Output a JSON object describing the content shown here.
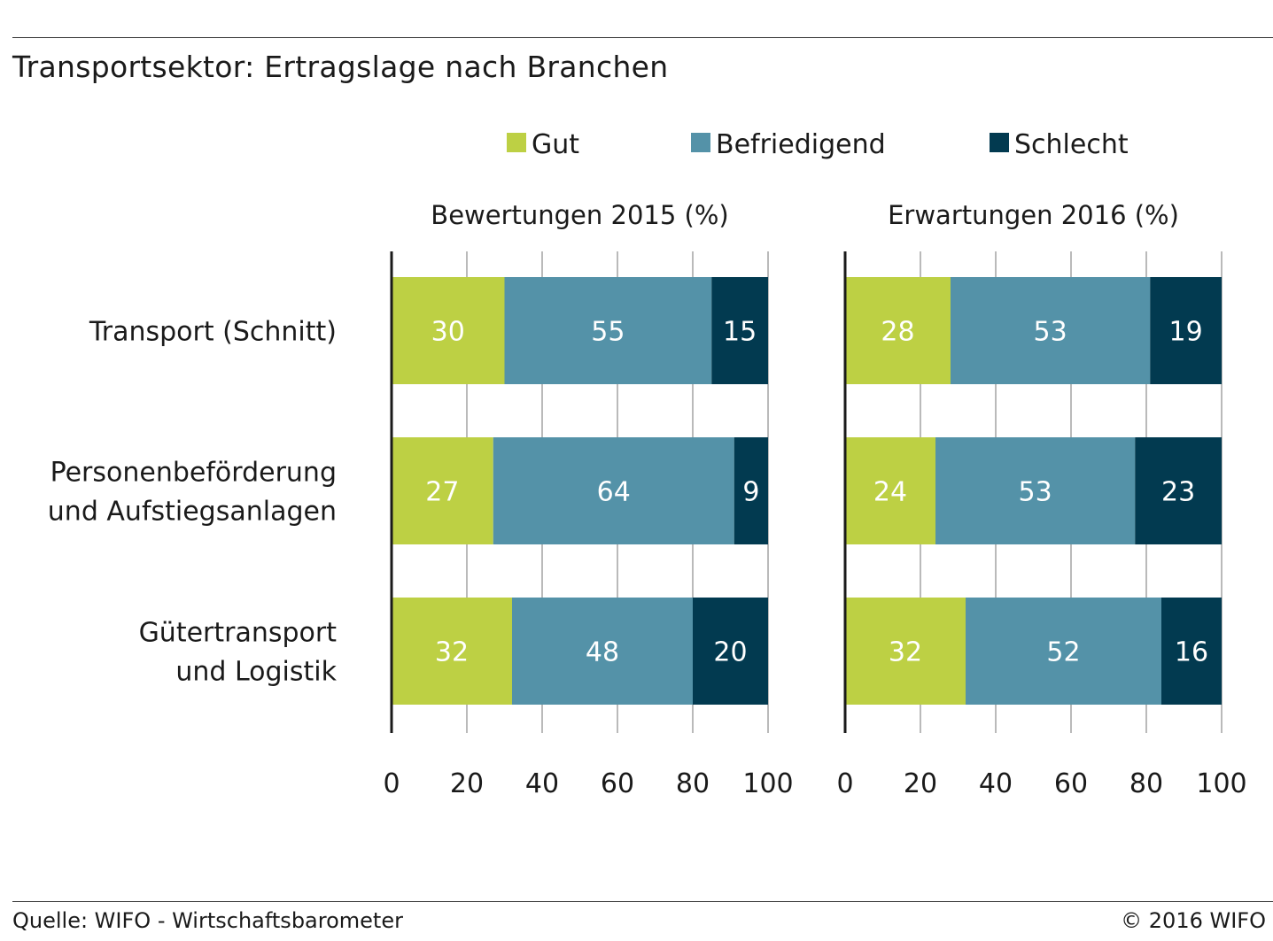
{
  "title": "Transportsektor: Ertragslage nach Branchen",
  "footer": {
    "source": "Quelle: WIFO - Wirtschaftsbarometer",
    "copyright": "© 2016 WIFO"
  },
  "colors": {
    "gut": "#bdd044",
    "befriedigend": "#5492a8",
    "schlecht": "#023a50"
  },
  "chart_data": [
    {
      "type": "bar",
      "orientation": "horizontal",
      "stacked": true,
      "title": "Bewertungen 2015 (%)",
      "categories": [
        [
          "Transport (Schnitt)"
        ],
        [
          "Personenbeförderung",
          "und Aufstiegsanlagen"
        ],
        [
          "Gütertransport",
          "und Logistik"
        ]
      ],
      "series": [
        {
          "name": "Gut",
          "values": [
            30,
            27,
            32
          ]
        },
        {
          "name": "Befriedigend",
          "values": [
            55,
            64,
            48
          ]
        },
        {
          "name": "Schlecht",
          "values": [
            15,
            9,
            20
          ]
        }
      ],
      "xlim": [
        0,
        100
      ],
      "xticks": [
        0,
        20,
        40,
        60,
        80,
        100
      ],
      "grid": true,
      "legend": "top"
    },
    {
      "type": "bar",
      "orientation": "horizontal",
      "stacked": true,
      "title": "Erwartungen 2016 (%)",
      "categories": [
        [
          "Transport (Schnitt)"
        ],
        [
          "Personenbeförderung",
          "und Aufstiegsanlagen"
        ],
        [
          "Gütertransport",
          "und Logistik"
        ]
      ],
      "series": [
        {
          "name": "Gut",
          "values": [
            28,
            24,
            32
          ]
        },
        {
          "name": "Befriedigend",
          "values": [
            53,
            53,
            52
          ]
        },
        {
          "name": "Schlecht",
          "values": [
            19,
            23,
            16
          ]
        }
      ],
      "xlim": [
        0,
        100
      ],
      "xticks": [
        0,
        20,
        40,
        60,
        80,
        100
      ],
      "grid": true,
      "legend": "top"
    }
  ]
}
